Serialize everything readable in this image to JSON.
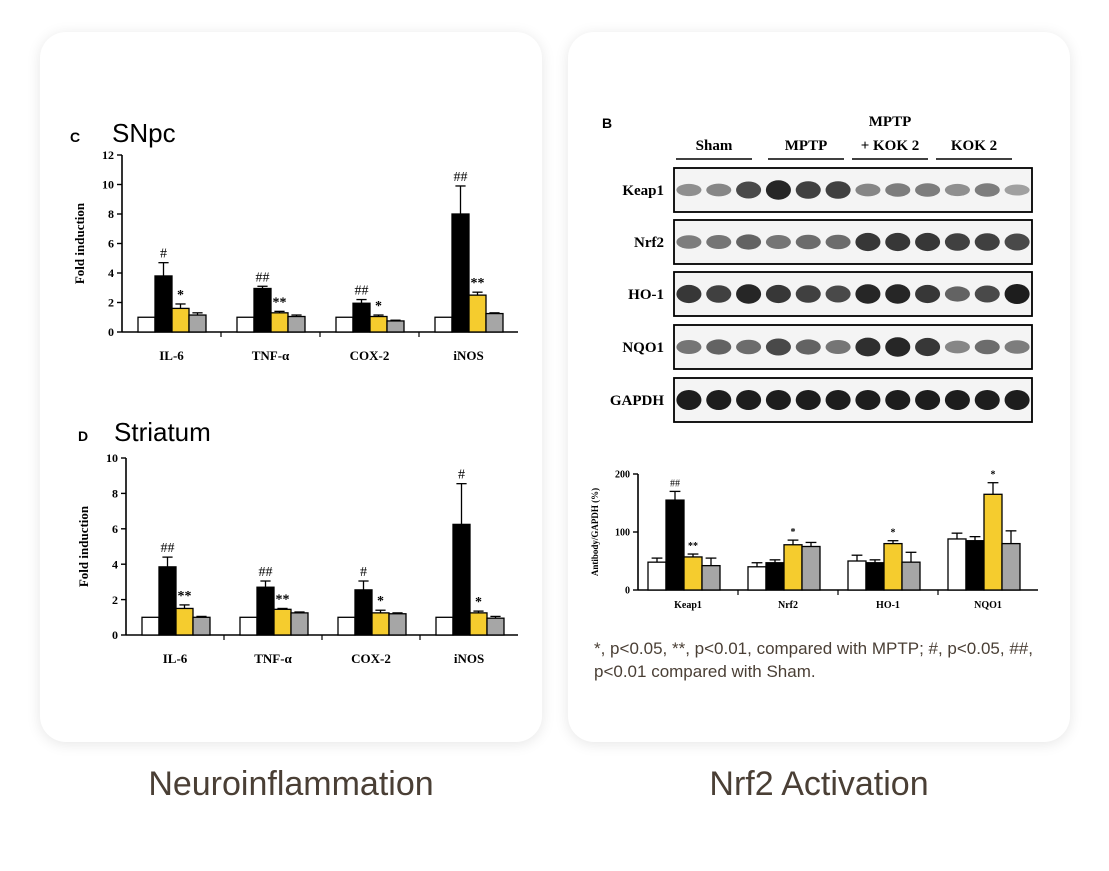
{
  "panels": {
    "left_caption": "Neuroinflammation",
    "right_caption": "Nrf2 Activation"
  },
  "colors": {
    "sham": "#ffffff",
    "mptp": "#000000",
    "mptp_kok2": "#f5cc2e",
    "kok2": "#a6a6a6"
  },
  "blot": {
    "panel_letter": "B",
    "groups": [
      "Sham",
      "MPTP",
      "MPTP\n+ KOK 2",
      "KOK 2"
    ],
    "proteins": [
      "Keap1",
      "Nrf2",
      "HO-1",
      "NQO1",
      "GAPDH"
    ]
  },
  "footnote": "*, p<0.05, **, p<0.01, compared with MPTP; #, p<0.05, ##, p<0.01 compared with Sham.",
  "chart_data": [
    {
      "type": "bar",
      "panel_letter": "C",
      "title": "SNpc",
      "ylabel": "Fold induction",
      "xlabel": "",
      "ylim": [
        0,
        12
      ],
      "yticks": [
        0,
        2,
        4,
        6,
        8,
        10,
        12
      ],
      "categories": [
        "IL-6",
        "TNF-α",
        "COX-2",
        "iNOS"
      ],
      "series": [
        {
          "values": [
            1.0,
            1.0,
            1.0,
            1.0
          ],
          "errors": [
            0,
            0,
            0,
            0
          ],
          "labels": [
            "",
            "",
            "",
            ""
          ]
        },
        {
          "values": [
            3.8,
            2.95,
            1.95,
            8.0
          ],
          "errors": [
            0.9,
            0.15,
            0.25,
            1.9
          ],
          "labels": [
            "#",
            "##",
            "##",
            "##"
          ]
        },
        {
          "values": [
            1.6,
            1.3,
            1.05,
            2.5
          ],
          "errors": [
            0.3,
            0.1,
            0.1,
            0.2
          ],
          "labels": [
            "*",
            "**",
            "*",
            "**"
          ]
        },
        {
          "values": [
            1.15,
            1.05,
            0.75,
            1.25
          ],
          "errors": [
            0.15,
            0.1,
            0.05,
            0.05
          ],
          "labels": [
            "",
            "",
            "",
            ""
          ]
        }
      ]
    },
    {
      "type": "bar",
      "panel_letter": "D",
      "title": "Striatum",
      "ylabel": "Fold induction",
      "xlabel": "",
      "ylim": [
        0,
        10
      ],
      "yticks": [
        0,
        2,
        4,
        6,
        8,
        10
      ],
      "categories": [
        "IL-6",
        "TNF-α",
        "COX-2",
        "iNOS"
      ],
      "series": [
        {
          "values": [
            1.0,
            1.0,
            1.0,
            1.0
          ],
          "errors": [
            0,
            0,
            0,
            0
          ],
          "labels": [
            "",
            "",
            "",
            ""
          ]
        },
        {
          "values": [
            3.85,
            2.7,
            2.55,
            6.25
          ],
          "errors": [
            0.55,
            0.35,
            0.5,
            2.3
          ],
          "labels": [
            "##",
            "##",
            "#",
            "#"
          ]
        },
        {
          "values": [
            1.5,
            1.45,
            1.25,
            1.25
          ],
          "errors": [
            0.2,
            0.05,
            0.15,
            0.1
          ],
          "labels": [
            "**",
            "**",
            "*",
            "*"
          ]
        },
        {
          "values": [
            1.0,
            1.25,
            1.2,
            0.95
          ],
          "errors": [
            0.05,
            0.05,
            0.05,
            0.1
          ],
          "labels": [
            "",
            "",
            "",
            ""
          ]
        }
      ]
    },
    {
      "type": "bar",
      "title": "",
      "ylabel": "Antibody/GAPDH (%)",
      "xlabel": "",
      "ylim": [
        0,
        200
      ],
      "yticks": [
        0,
        100,
        200
      ],
      "categories": [
        "Keap1",
        "Nrf2",
        "HO-1",
        "NQO1"
      ],
      "series": [
        {
          "values": [
            48,
            40,
            50,
            88
          ],
          "errors": [
            7,
            7,
            10,
            10
          ],
          "labels": [
            "",
            "",
            "",
            ""
          ]
        },
        {
          "values": [
            155,
            47,
            47,
            85
          ],
          "errors": [
            15,
            5,
            5,
            7
          ],
          "labels": [
            "##",
            "",
            "",
            ""
          ]
        },
        {
          "values": [
            57,
            78,
            80,
            165
          ],
          "errors": [
            5,
            8,
            5,
            20
          ],
          "labels": [
            "**",
            "*",
            "*",
            "*"
          ]
        },
        {
          "values": [
            42,
            75,
            48,
            80
          ],
          "errors": [
            13,
            7,
            17,
            22
          ],
          "labels": [
            "",
            "",
            "",
            ""
          ]
        }
      ]
    }
  ]
}
